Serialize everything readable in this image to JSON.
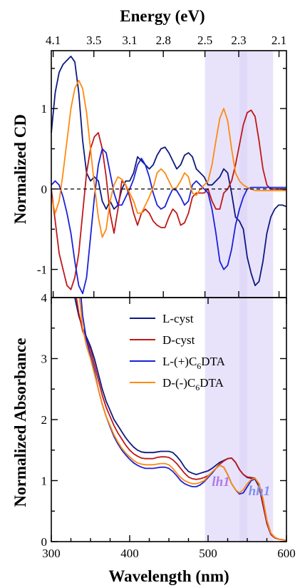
{
  "colors": {
    "L-cyst": "#0e1a7e",
    "D-cyst": "#c01818",
    "L-(+)C6DTA": "#1a22d8",
    "D-(-)C6DTA": "#ff8a10",
    "lh1": "#b07ae8",
    "hh1": "#8090f0",
    "band": "#d6ccf6"
  },
  "chart_data": [
    {
      "type": "line",
      "panel": "top",
      "ylabel": "Normalized CD",
      "x2label": "Energy (eV)",
      "x2_ticks": [
        "4.1",
        "3.5",
        "3.1",
        "2.8",
        "2.5",
        "2.3",
        "2.1"
      ],
      "x2_tick_positions_nm": [
        302.4,
        354.3,
        400,
        442.9,
        496,
        539.1,
        590.5
      ],
      "xlim": [
        300,
        600
      ],
      "ylim": [
        -1.35,
        1.72
      ],
      "yticks": [
        "-1",
        "0",
        "1"
      ],
      "zero_line": "dashed",
      "series": [
        {
          "name": "L-cyst",
          "color_key": "L-cyst",
          "x": [
            300,
            305,
            310,
            315,
            320,
            325,
            330,
            335,
            340,
            345,
            350,
            355,
            360,
            365,
            370,
            375,
            380,
            385,
            390,
            395,
            400,
            405,
            410,
            415,
            420,
            425,
            430,
            435,
            440,
            445,
            450,
            455,
            460,
            465,
            470,
            475,
            480,
            485,
            490,
            495,
            500,
            505,
            510,
            515,
            520,
            525,
            530,
            535,
            540,
            545,
            550,
            555,
            560,
            565,
            570,
            575,
            580,
            585,
            590,
            595,
            600
          ],
          "y": [
            0.7,
            1.2,
            1.45,
            1.55,
            1.6,
            1.65,
            1.58,
            1.2,
            0.6,
            0.2,
            0.1,
            0.15,
            0.1,
            -0.15,
            -0.25,
            -0.15,
            -0.25,
            -0.2,
            0.0,
            0.1,
            0.1,
            0.2,
            0.4,
            0.35,
            0.3,
            0.25,
            0.3,
            0.42,
            0.5,
            0.52,
            0.45,
            0.35,
            0.25,
            0.3,
            0.42,
            0.45,
            0.4,
            0.25,
            0.2,
            0.15,
            0.05,
            0.05,
            0.1,
            0.15,
            0.25,
            0.2,
            -0.05,
            -0.35,
            -0.4,
            -0.5,
            -0.85,
            -1.05,
            -1.2,
            -1.15,
            -0.9,
            -0.55,
            -0.35,
            -0.25,
            -0.2,
            -0.2,
            -0.22
          ]
        },
        {
          "name": "D-cyst",
          "color_key": "D-cyst",
          "x": [
            300,
            305,
            310,
            315,
            320,
            325,
            330,
            335,
            340,
            345,
            350,
            355,
            360,
            365,
            370,
            375,
            380,
            385,
            390,
            395,
            400,
            405,
            410,
            415,
            420,
            425,
            430,
            435,
            440,
            445,
            450,
            455,
            460,
            465,
            470,
            475,
            480,
            485,
            490,
            495,
            500,
            505,
            510,
            515,
            520,
            525,
            530,
            535,
            540,
            545,
            550,
            555,
            560,
            565,
            570,
            575,
            580,
            585,
            590,
            595,
            600
          ],
          "y": [
            0.0,
            -0.4,
            -0.8,
            -1.0,
            -1.2,
            -1.25,
            -1.1,
            -0.8,
            -0.3,
            0.2,
            0.5,
            0.65,
            0.7,
            0.5,
            0.15,
            -0.3,
            -0.55,
            -0.25,
            0.1,
            0.05,
            -0.1,
            -0.3,
            -0.45,
            -0.3,
            -0.25,
            -0.3,
            -0.4,
            -0.45,
            -0.48,
            -0.48,
            -0.35,
            -0.25,
            -0.3,
            -0.45,
            -0.42,
            -0.3,
            -0.1,
            -0.05,
            -0.05,
            -0.05,
            0.0,
            -0.15,
            -0.25,
            -0.25,
            -0.05,
            0.0,
            0.1,
            0.3,
            0.55,
            0.8,
            0.95,
            0.98,
            0.9,
            0.6,
            0.25,
            0.05,
            0.0,
            0.0,
            0.0,
            0.0,
            -0.02
          ]
        },
        {
          "name": "L-(+)C6DTA",
          "color_key": "L-(+)C6DTA",
          "x": [
            300,
            305,
            310,
            315,
            320,
            325,
            330,
            335,
            340,
            345,
            350,
            355,
            360,
            365,
            370,
            375,
            380,
            385,
            390,
            395,
            400,
            405,
            410,
            415,
            420,
            425,
            430,
            435,
            440,
            445,
            450,
            455,
            460,
            465,
            470,
            475,
            480,
            485,
            490,
            495,
            500,
            505,
            510,
            515,
            520,
            525,
            530,
            535,
            540,
            545,
            550,
            555,
            560,
            565,
            570,
            575,
            580,
            585,
            590,
            595,
            600
          ],
          "y": [
            0.05,
            0.1,
            0.05,
            -0.1,
            -0.3,
            -0.55,
            -0.9,
            -1.2,
            -1.3,
            -1.1,
            -0.6,
            -0.1,
            0.3,
            0.5,
            0.45,
            0.2,
            -0.05,
            -0.2,
            -0.2,
            -0.1,
            0.0,
            0.12,
            0.3,
            0.38,
            0.3,
            0.15,
            -0.05,
            -0.2,
            -0.25,
            -0.22,
            -0.1,
            0.0,
            -0.02,
            -0.1,
            -0.2,
            -0.15,
            0.05,
            0.1,
            0.05,
            0.0,
            -0.05,
            -0.25,
            -0.55,
            -0.9,
            -1.0,
            -0.95,
            -0.75,
            -0.45,
            -0.25,
            -0.1,
            0.0,
            0.02,
            0.02,
            0.02,
            0.02,
            0.02,
            0.02,
            0.02,
            0.02,
            0.02,
            0.02
          ]
        },
        {
          "name": "D-(-)C6DTA",
          "color_key": "D-(-)C6DTA",
          "x": [
            300,
            305,
            310,
            315,
            320,
            325,
            330,
            335,
            340,
            345,
            350,
            355,
            360,
            365,
            370,
            375,
            380,
            385,
            390,
            395,
            400,
            405,
            410,
            415,
            420,
            425,
            430,
            435,
            440,
            445,
            450,
            455,
            460,
            465,
            470,
            475,
            480,
            485,
            490,
            495,
            500,
            505,
            510,
            515,
            520,
            525,
            530,
            535,
            540,
            545,
            550,
            555,
            560,
            565,
            570,
            575,
            580,
            585,
            590,
            595,
            600
          ],
          "y": [
            -0.1,
            -0.3,
            -0.15,
            0.2,
            0.6,
            1.0,
            1.25,
            1.35,
            1.25,
            0.95,
            0.5,
            0.05,
            -0.35,
            -0.6,
            -0.5,
            -0.15,
            0.05,
            0.15,
            0.12,
            0.05,
            -0.05,
            -0.15,
            -0.3,
            -0.3,
            -0.2,
            -0.1,
            0.02,
            0.2,
            0.25,
            0.2,
            0.1,
            0.0,
            0.02,
            0.1,
            0.2,
            0.15,
            -0.05,
            -0.08,
            0.0,
            0.05,
            0.1,
            0.3,
            0.6,
            0.88,
            1.0,
            0.85,
            0.5,
            0.2,
            0.1,
            0.05,
            0.02,
            0.0,
            -0.02,
            -0.02,
            -0.02,
            -0.02,
            -0.02,
            -0.02,
            -0.02,
            -0.02,
            -0.02
          ]
        }
      ]
    },
    {
      "type": "line",
      "panel": "bottom",
      "xlabel": "Wavelength (nm)",
      "ylabel": "Normalized Absorbance",
      "xlim": [
        300,
        600
      ],
      "ylim": [
        0,
        4
      ],
      "xticks": [
        "300",
        "400",
        "500",
        "600"
      ],
      "yticks": [
        "0",
        "1",
        "2",
        "3",
        "4"
      ],
      "legend_position": "top-right",
      "series": [
        {
          "name": "L-cyst",
          "color_key": "L-cyst",
          "x": [
            330,
            335,
            340,
            345,
            350,
            355,
            360,
            365,
            370,
            375,
            380,
            385,
            390,
            395,
            400,
            405,
            410,
            415,
            420,
            425,
            430,
            435,
            440,
            445,
            450,
            455,
            460,
            465,
            470,
            475,
            480,
            485,
            490,
            495,
            500,
            505,
            510,
            515,
            520,
            525,
            530,
            535,
            540,
            545,
            550,
            555,
            560,
            565,
            570,
            575,
            580,
            585,
            590,
            595,
            600
          ],
          "y": [
            4.0,
            3.7,
            3.5,
            3.35,
            3.2,
            3.0,
            2.75,
            2.5,
            2.3,
            2.15,
            2.0,
            1.9,
            1.8,
            1.7,
            1.62,
            1.55,
            1.5,
            1.47,
            1.46,
            1.46,
            1.46,
            1.47,
            1.48,
            1.48,
            1.48,
            1.46,
            1.4,
            1.32,
            1.22,
            1.15,
            1.12,
            1.1,
            1.12,
            1.14,
            1.16,
            1.2,
            1.25,
            1.3,
            1.33,
            1.36,
            1.37,
            1.3,
            1.18,
            1.1,
            1.05,
            1.04,
            1.02,
            0.9,
            0.6,
            0.3,
            0.12,
            0.06,
            0.04,
            0.03,
            0.02
          ]
        },
        {
          "name": "D-cyst",
          "color_key": "D-cyst",
          "x": [
            332,
            335,
            340,
            345,
            350,
            355,
            360,
            365,
            370,
            375,
            380,
            385,
            390,
            395,
            400,
            405,
            410,
            415,
            420,
            425,
            430,
            435,
            440,
            445,
            450,
            455,
            460,
            465,
            470,
            475,
            480,
            485,
            490,
            495,
            500,
            505,
            510,
            515,
            520,
            525,
            530,
            535,
            540,
            545,
            550,
            555,
            560,
            565,
            570,
            575,
            580,
            585,
            590,
            595,
            600
          ],
          "y": [
            4.0,
            3.75,
            3.45,
            3.3,
            3.15,
            2.9,
            2.65,
            2.4,
            2.2,
            2.05,
            1.9,
            1.78,
            1.68,
            1.58,
            1.5,
            1.44,
            1.4,
            1.37,
            1.36,
            1.36,
            1.36,
            1.38,
            1.39,
            1.39,
            1.38,
            1.34,
            1.28,
            1.2,
            1.12,
            1.06,
            1.03,
            1.02,
            1.03,
            1.05,
            1.08,
            1.13,
            1.2,
            1.27,
            1.32,
            1.36,
            1.37,
            1.3,
            1.18,
            1.1,
            1.06,
            1.05,
            1.04,
            0.92,
            0.62,
            0.3,
            0.12,
            0.06,
            0.04,
            0.03,
            0.02
          ]
        },
        {
          "name": "L-(+)C6DTA",
          "color_key": "L-(+)C6DTA",
          "x": [
            338,
            340,
            345,
            350,
            355,
            360,
            365,
            370,
            375,
            380,
            385,
            390,
            395,
            400,
            405,
            410,
            415,
            420,
            425,
            430,
            435,
            440,
            445,
            450,
            455,
            460,
            465,
            470,
            475,
            480,
            485,
            490,
            495,
            500,
            505,
            510,
            515,
            520,
            525,
            530,
            535,
            540,
            545,
            550,
            555,
            560,
            565,
            570,
            575,
            580,
            585,
            590,
            595,
            600
          ],
          "y": [
            4.0,
            3.7,
            3.3,
            3.05,
            2.8,
            2.5,
            2.25,
            2.05,
            1.88,
            1.72,
            1.6,
            1.5,
            1.42,
            1.35,
            1.29,
            1.25,
            1.22,
            1.2,
            1.2,
            1.2,
            1.21,
            1.22,
            1.22,
            1.2,
            1.15,
            1.08,
            1.0,
            0.95,
            0.92,
            0.9,
            0.9,
            0.93,
            0.98,
            1.05,
            1.12,
            1.2,
            1.25,
            1.22,
            1.1,
            0.95,
            0.85,
            0.78,
            0.8,
            0.9,
            1.0,
            1.03,
            0.95,
            0.7,
            0.35,
            0.14,
            0.07,
            0.04,
            0.03,
            0.02
          ]
        },
        {
          "name": "D-(-)C6DTA",
          "color_key": "D-(-)C6DTA",
          "x": [
            336,
            340,
            345,
            350,
            355,
            360,
            365,
            370,
            375,
            380,
            385,
            390,
            395,
            400,
            405,
            410,
            415,
            420,
            425,
            430,
            435,
            440,
            445,
            450,
            455,
            460,
            465,
            470,
            475,
            480,
            485,
            490,
            495,
            500,
            505,
            510,
            515,
            520,
            525,
            530,
            535,
            540,
            545,
            550,
            555,
            560,
            565,
            570,
            575,
            580,
            585,
            590,
            595,
            600
          ],
          "y": [
            4.0,
            3.5,
            3.2,
            3.0,
            2.75,
            2.5,
            2.25,
            2.05,
            1.9,
            1.75,
            1.63,
            1.53,
            1.45,
            1.39,
            1.33,
            1.29,
            1.27,
            1.26,
            1.26,
            1.26,
            1.27,
            1.28,
            1.28,
            1.26,
            1.2,
            1.12,
            1.05,
            1.0,
            0.97,
            0.95,
            0.95,
            0.97,
            1.0,
            1.07,
            1.14,
            1.2,
            1.25,
            1.22,
            1.1,
            0.95,
            0.85,
            0.8,
            0.85,
            0.95,
            1.02,
            1.04,
            0.95,
            0.7,
            0.35,
            0.14,
            0.07,
            0.04,
            0.03,
            0.02
          ]
        }
      ]
    }
  ],
  "highlight_bands_nm": [
    [
      496,
      540
    ],
    [
      540,
      550
    ],
    [
      550,
      583
    ]
  ],
  "legend": {
    "items": [
      {
        "pre": "L-cyst",
        "sub": "",
        "post": "",
        "color_key": "L-cyst"
      },
      {
        "pre": "D-cyst",
        "sub": "",
        "post": "",
        "color_key": "D-cyst"
      },
      {
        "pre": "L-(+)C",
        "sub": "6",
        "post": "DTA",
        "color_key": "L-(+)C6DTA"
      },
      {
        "pre": "D-(-)C",
        "sub": "6",
        "post": "DTA",
        "color_key": "D-(-)C6DTA"
      }
    ]
  },
  "annotations": {
    "lh1": "lh1",
    "hh1": "hh1"
  }
}
